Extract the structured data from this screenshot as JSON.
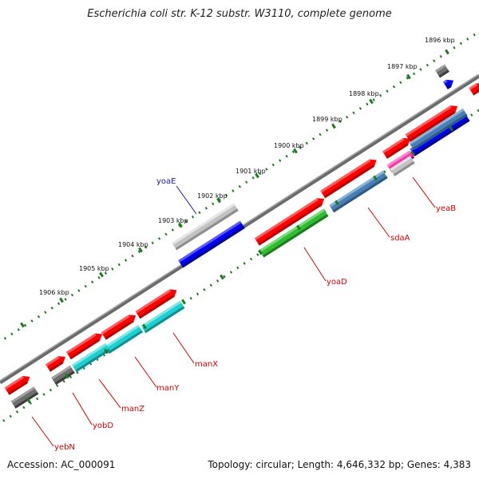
{
  "title": "Escherichia coli str. K-12 substr. W3110, complete genome",
  "accession": "Accession: AC_000091",
  "topology": "Topology: circular; Length: 4,646,332 bp; Genes: 4,383",
  "colors": {
    "backbone": "#7a7a7a",
    "ticks": "#1e7a1e",
    "cds_forward": "#ff0000",
    "label_red": "#d40000",
    "label_blue": "#1a1aa8"
  },
  "ticks": [
    {
      "label": "1896 kbp"
    },
    {
      "label": "1897 kbp"
    },
    {
      "label": "1898 kbp"
    },
    {
      "label": "1899 kbp"
    },
    {
      "label": "1900 kbp"
    },
    {
      "label": "1901 kbp"
    },
    {
      "label": "1902 kbp"
    },
    {
      "label": "1903 kbp"
    },
    {
      "label": "1904 kbp"
    },
    {
      "label": "1905 kbp"
    },
    {
      "label": "1906 kbp"
    }
  ],
  "genes": [
    {
      "name": "yoaE",
      "color": "blue"
    },
    {
      "name": "yoaD",
      "color": "red"
    },
    {
      "name": "sdaA",
      "color": "red"
    },
    {
      "name": "yeaB",
      "color": "red"
    },
    {
      "name": "manX",
      "color": "red"
    },
    {
      "name": "manY",
      "color": "red"
    },
    {
      "name": "manZ",
      "color": "red"
    },
    {
      "name": "yobD",
      "color": "red"
    },
    {
      "name": "yebN",
      "color": "red"
    }
  ]
}
